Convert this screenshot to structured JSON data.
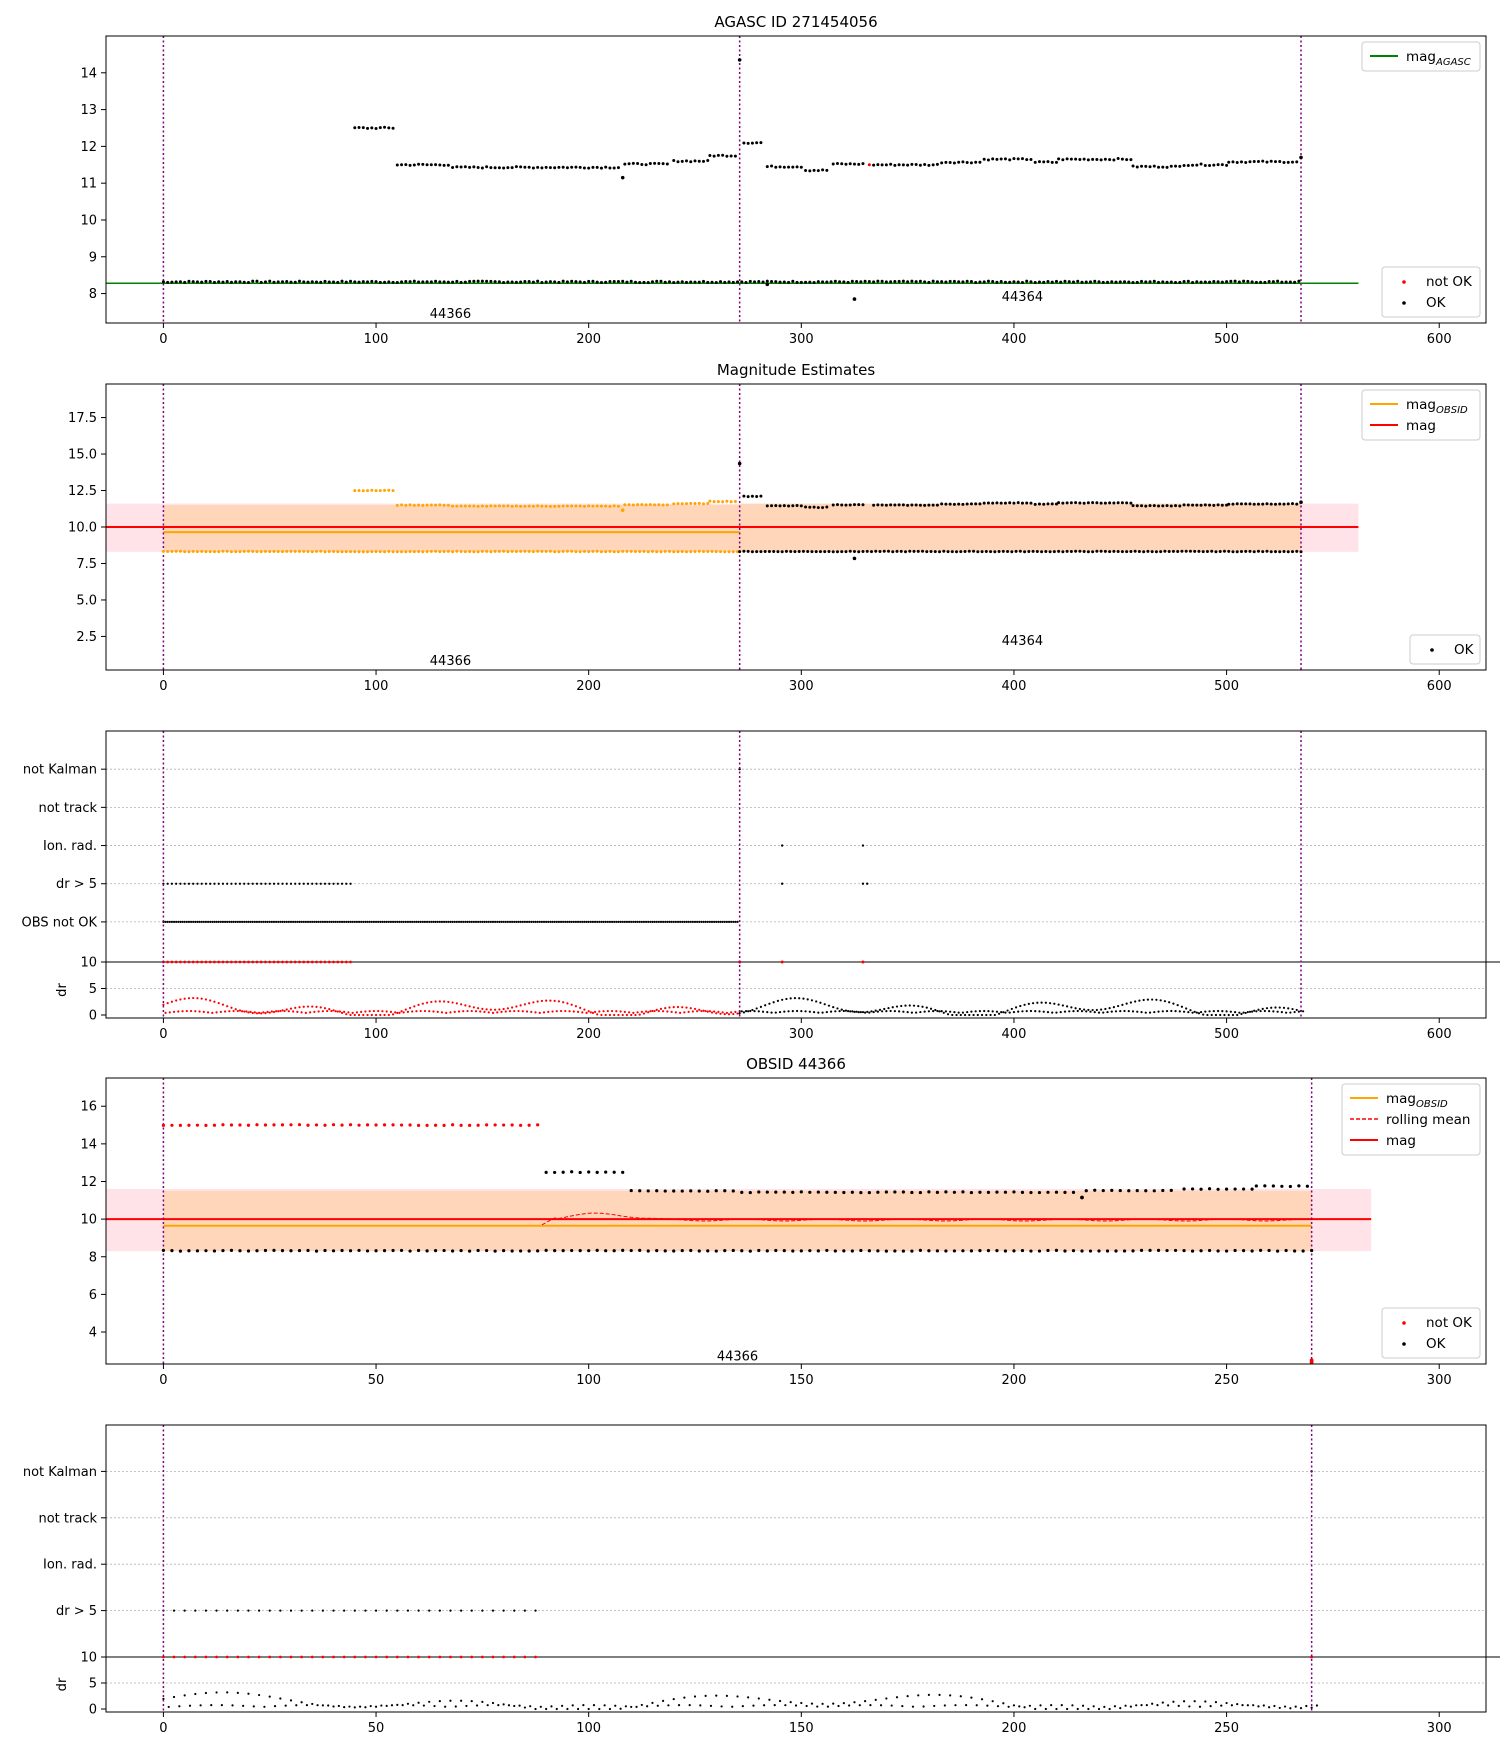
{
  "chart_data": [
    {
      "id": "p1",
      "type": "scatter",
      "title": "AGASC ID 271454056",
      "xlim": [
        -27,
        622
      ],
      "ylim": [
        7.2,
        15.0
      ],
      "xticks": [
        0,
        100,
        200,
        300,
        400,
        500,
        600
      ],
      "yticks": [
        8,
        9,
        10,
        11,
        12,
        13,
        14
      ],
      "vlines": [
        0,
        271,
        535
      ],
      "obsid_labels": [
        {
          "text": "44366",
          "x": 135,
          "y": 7.45
        },
        {
          "text": "44364",
          "x": 404,
          "y": 7.9
        }
      ],
      "hline": {
        "name": "mag_AGASC",
        "y": 8.28,
        "x": [
          -27,
          562
        ],
        "color": "#008000"
      },
      "series": [
        {
          "name": "not OK",
          "color": "#ff0000",
          "segments": [
            {
              "x": [
                332,
                332
              ],
              "y": 11.5
            }
          ]
        },
        {
          "name": "OK",
          "color": "#000000",
          "segments": [
            {
              "x": [
                0,
                535
              ],
              "y": 8.32
            },
            {
              "x": [
                90,
                108
              ],
              "y": 12.5
            },
            {
              "x": [
                110,
                135
              ],
              "y": 11.5
            },
            {
              "x": [
                136,
                215
              ],
              "y": 11.43
            },
            {
              "x": [
                217,
                238
              ],
              "y": 11.52
            },
            {
              "x": [
                240,
                256
              ],
              "y": 11.6
            },
            {
              "x": [
                257,
                270
              ],
              "y": 11.75
            },
            {
              "x": [
                273,
                282
              ],
              "y": 12.1
            },
            {
              "x": [
                284,
                300
              ],
              "y": 11.45
            },
            {
              "x": [
                302,
                313
              ],
              "y": 11.35
            },
            {
              "x": [
                315,
                330
              ],
              "y": 11.52
            },
            {
              "x": [
                334,
                365
              ],
              "y": 11.5
            },
            {
              "x": [
                366,
                385
              ],
              "y": 11.57
            },
            {
              "x": [
                386,
                408
              ],
              "y": 11.65
            },
            {
              "x": [
                410,
                420
              ],
              "y": 11.57
            },
            {
              "x": [
                421,
                455
              ],
              "y": 11.65
            },
            {
              "x": [
                456,
                478
              ],
              "y": 11.45
            },
            {
              "x": [
                480,
                500
              ],
              "y": 11.5
            },
            {
              "x": [
                501,
                533
              ],
              "y": 11.58
            }
          ],
          "extra_points": [
            [
              271,
              14.35
            ],
            [
              216,
              11.15
            ],
            [
              325,
              7.85
            ],
            [
              284,
              8.25
            ],
            [
              535,
              11.7
            ]
          ]
        }
      ],
      "legends": [
        {
          "position": "top-right",
          "entries": [
            {
              "label": "mag",
              "sub": "AGASC",
              "color": "#008000",
              "kind": "line"
            }
          ]
        },
        {
          "position": "bottom-right",
          "entries": [
            {
              "label": "not OK",
              "color": "#ff0000",
              "kind": "dot"
            },
            {
              "label": "OK",
              "color": "#000000",
              "kind": "dot"
            }
          ]
        }
      ]
    },
    {
      "id": "p2",
      "type": "scatter",
      "title": "Magnitude Estimates",
      "xlim": [
        -27,
        622
      ],
      "ylim": [
        0.2,
        19.8
      ],
      "xticks": [
        0,
        100,
        200,
        300,
        400,
        500,
        600
      ],
      "yticks": [
        2.5,
        5.0,
        7.5,
        10.0,
        12.5,
        15.0,
        17.5
      ],
      "ytick_labels": [
        "2.5",
        "5.0",
        "7.5",
        "10.0",
        "12.5",
        "15.0",
        "17.5"
      ],
      "vlines": [
        0,
        271,
        535
      ],
      "obsid_labels": [
        {
          "text": "44366",
          "x": 135,
          "y": 0.8
        },
        {
          "text": "44364",
          "x": 404,
          "y": 2.2
        }
      ],
      "bands": [
        {
          "x": [
            -27,
            562
          ],
          "y": [
            8.3,
            11.6
          ],
          "color": "#ffc0cb",
          "opacity": 0.45
        },
        {
          "x": [
            0,
            271
          ],
          "y": [
            8.3,
            11.5
          ],
          "color": "#ffa500",
          "opacity": 0.2
        },
        {
          "x": [
            271,
            535
          ],
          "y": [
            8.3,
            11.6
          ],
          "color": "#ffa500",
          "opacity": 0.2
        }
      ],
      "lines": [
        {
          "name": "mag_OBSID",
          "color": "#ffa500",
          "x": [
            0,
            271
          ],
          "y": 9.65
        },
        {
          "name": "mag_OBSID",
          "color": "#ffa500",
          "x": [
            271,
            535
          ],
          "y": 10.0
        },
        {
          "name": "mag",
          "color": "#ff0000",
          "x": [
            -27,
            562
          ],
          "y": 10.0
        }
      ],
      "series": [
        {
          "name": "OBSID 44366",
          "color": "#ffa500",
          "segments": [
            {
              "x": [
                0,
                270
              ],
              "y": 8.32
            },
            {
              "x": [
                90,
                108
              ],
              "y": 12.5
            },
            {
              "x": [
                110,
                135
              ],
              "y": 11.5
            },
            {
              "x": [
                136,
                215
              ],
              "y": 11.43
            },
            {
              "x": [
                217,
                238
              ],
              "y": 11.52
            },
            {
              "x": [
                240,
                256
              ],
              "y": 11.6
            },
            {
              "x": [
                257,
                270
              ],
              "y": 11.75
            }
          ],
          "extra_points": [
            [
              216,
              11.15
            ]
          ]
        },
        {
          "name": "OK",
          "color": "#000000",
          "segments": [
            {
              "x": [
                271,
                535
              ],
              "y": 8.32
            },
            {
              "x": [
                273,
                282
              ],
              "y": 12.1
            },
            {
              "x": [
                284,
                300
              ],
              "y": 11.45
            },
            {
              "x": [
                302,
                313
              ],
              "y": 11.35
            },
            {
              "x": [
                315,
                330
              ],
              "y": 11.52
            },
            {
              "x": [
                334,
                365
              ],
              "y": 11.5
            },
            {
              "x": [
                366,
                385
              ],
              "y": 11.57
            },
            {
              "x": [
                386,
                408
              ],
              "y": 11.65
            },
            {
              "x": [
                410,
                420
              ],
              "y": 11.57
            },
            {
              "x": [
                421,
                455
              ],
              "y": 11.65
            },
            {
              "x": [
                456,
                478
              ],
              "y": 11.45
            },
            {
              "x": [
                480,
                500
              ],
              "y": 11.5
            },
            {
              "x": [
                501,
                533
              ],
              "y": 11.58
            }
          ],
          "extra_points": [
            [
              271,
              14.35
            ],
            [
              325,
              7.85
            ],
            [
              535,
              11.7
            ]
          ]
        }
      ],
      "legends": [
        {
          "position": "top-right",
          "entries": [
            {
              "label": "mag",
              "sub": "OBSID",
              "color": "#ffa500",
              "kind": "line"
            },
            {
              "label": "mag",
              "color": "#ff0000",
              "kind": "line"
            }
          ]
        },
        {
          "position": "bottom-right",
          "entries": [
            {
              "label": "OK",
              "color": "#000000",
              "kind": "dot"
            }
          ]
        }
      ]
    },
    {
      "id": "p3",
      "type": "flags",
      "xlim": [
        -27,
        622
      ],
      "xticks": [
        0,
        100,
        200,
        300,
        400,
        500,
        600
      ],
      "vlines": [
        0,
        271,
        535
      ],
      "flag_labels": [
        "not Kalman",
        "not track",
        "Ion. rad.",
        "dr > 5",
        "OBS not OK"
      ],
      "flags": [
        {
          "row": 0,
          "color": "#000000",
          "points": [
            271
          ]
        },
        {
          "row": 2,
          "color": "#000000",
          "points": [
            291,
            329
          ]
        },
        {
          "row": 3,
          "color": "#000000",
          "ranges": [
            [
              0,
              88
            ]
          ],
          "points": [
            291,
            329,
            331
          ]
        },
        {
          "row": 4,
          "color": "#000000",
          "ranges": [
            [
              0,
              270
            ]
          ]
        }
      ],
      "dr": {
        "ylabel": "dr",
        "ylim": [
          0,
          10
        ],
        "yticks": [
          0,
          5,
          10
        ],
        "cap": 10,
        "capped_red_ranges": [
          [
            0,
            88
          ]
        ],
        "capped_red_points": [
          271,
          291,
          329
        ],
        "red_range": [
          0,
          271
        ],
        "black_range": [
          271,
          535
        ]
      }
    },
    {
      "id": "p4",
      "type": "scatter",
      "title": "OBSID 44366",
      "xlim": [
        -13.5,
        311
      ],
      "ylim": [
        2.3,
        17.5
      ],
      "xticks": [
        0,
        50,
        100,
        150,
        200,
        250,
        300
      ],
      "yticks": [
        4,
        6,
        8,
        10,
        12,
        14,
        16
      ],
      "vlines": [
        0,
        270
      ],
      "obsid_labels": [
        {
          "text": "44366",
          "x": 135,
          "y": 2.7
        }
      ],
      "bands": [
        {
          "x": [
            -13.5,
            284
          ],
          "y": [
            8.3,
            11.6
          ],
          "color": "#ffc0cb",
          "opacity": 0.45
        },
        {
          "x": [
            0,
            270
          ],
          "y": [
            8.3,
            11.5
          ],
          "color": "#ffa500",
          "opacity": 0.2
        }
      ],
      "lines": [
        {
          "name": "mag_OBSID",
          "color": "#ffa500",
          "x": [
            0,
            270
          ],
          "y": 9.65
        },
        {
          "name": "mag",
          "color": "#ff0000",
          "x": [
            -13.5,
            284
          ],
          "y": 10.0
        }
      ],
      "rolling_mean": {
        "name": "rolling mean",
        "color": "#ff0000",
        "x": [
          89,
          270
        ],
        "base": 9.95
      },
      "series": [
        {
          "name": "not OK",
          "color": "#ff0000",
          "segments": [
            {
              "x": [
                0,
                88
              ],
              "y": 15.0
            }
          ],
          "extra_points": [
            [
              270,
              2.4
            ],
            [
              270,
              2.5
            ]
          ]
        },
        {
          "name": "OK",
          "color": "#000000",
          "segments": [
            {
              "x": [
                0,
                270
              ],
              "y": 8.32
            },
            {
              "x": [
                90,
                108
              ],
              "y": 12.5
            },
            {
              "x": [
                110,
                135
              ],
              "y": 11.5
            },
            {
              "x": [
                136,
                215
              ],
              "y": 11.43
            },
            {
              "x": [
                217,
                238
              ],
              "y": 11.52
            },
            {
              "x": [
                240,
                256
              ],
              "y": 11.6
            },
            {
              "x": [
                257,
                270
              ],
              "y": 11.75
            }
          ],
          "extra_points": [
            [
              216,
              11.15
            ]
          ]
        }
      ],
      "legends": [
        {
          "position": "top-right",
          "entries": [
            {
              "label": "mag",
              "sub": "OBSID",
              "color": "#ffa500",
              "kind": "line"
            },
            {
              "label": "rolling mean",
              "color": "#ff0000",
              "kind": "dash"
            },
            {
              "label": "mag",
              "color": "#ff0000",
              "kind": "line"
            }
          ]
        },
        {
          "position": "bottom-right",
          "entries": [
            {
              "label": "not OK",
              "color": "#ff0000",
              "kind": "dot"
            },
            {
              "label": "OK",
              "color": "#000000",
              "kind": "dot"
            }
          ]
        }
      ]
    },
    {
      "id": "p5",
      "type": "flags",
      "xlim": [
        -13.5,
        311
      ],
      "xticks": [
        0,
        50,
        100,
        150,
        200,
        250,
        300
      ],
      "vlines": [
        0,
        270
      ],
      "flag_labels": [
        "not Kalman",
        "not track",
        "Ion. rad.",
        "dr > 5"
      ],
      "flags": [
        {
          "row": 0,
          "color": "#000000",
          "points": [
            270
          ]
        },
        {
          "row": 3,
          "color": "#000000",
          "ranges": [
            [
              0,
              88
            ]
          ]
        }
      ],
      "dr": {
        "ylabel": "dr",
        "ylim": [
          0,
          10
        ],
        "yticks": [
          0,
          5,
          10
        ],
        "cap": 10,
        "capped_red_ranges": [
          [
            0,
            88
          ]
        ],
        "capped_red_points": [
          270
        ],
        "red_range": [
          0,
          0
        ],
        "black_range": [
          0,
          270
        ]
      }
    }
  ]
}
